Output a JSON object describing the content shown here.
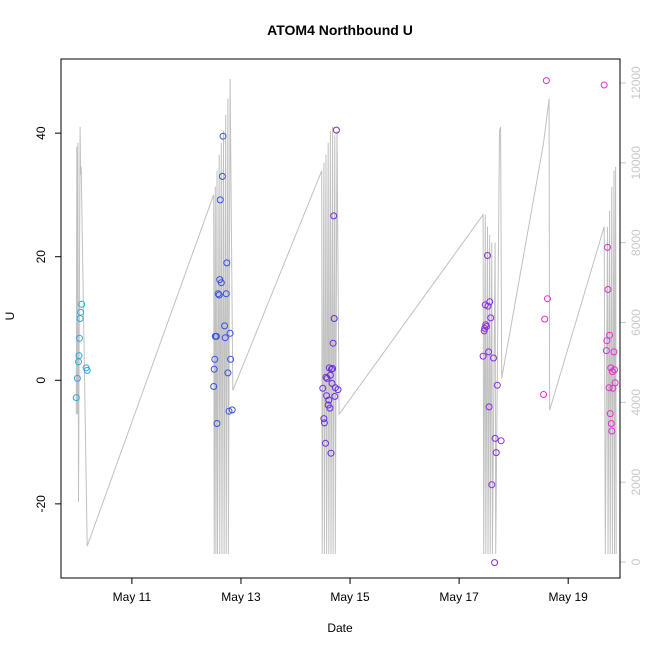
{
  "chart_data": {
    "type": "scatter",
    "title": "ATOM4 Northbound U",
    "xlabel": "Date",
    "ylabel": "U",
    "x_ticks": [
      {
        "label": "May 11",
        "day": 11
      },
      {
        "label": "May 13",
        "day": 13
      },
      {
        "label": "May 15",
        "day": 15
      },
      {
        "label": "May 17",
        "day": 17
      },
      {
        "label": "May 19",
        "day": 19
      }
    ],
    "xlim_days": [
      9.7,
      19.95
    ],
    "ylim": [
      -32,
      52
    ],
    "y_ticks": [
      -20,
      0,
      20,
      40
    ],
    "y2_ticks": [
      0,
      2000,
      4000,
      6000,
      8000,
      10000,
      12000
    ],
    "y2lim": [
      -400,
      12600
    ],
    "colors": {
      "early": "#2fa8e0",
      "mid": "#3550e0",
      "late": "#6a2be0",
      "end": "#e030d0",
      "trace": "#c0c0c0"
    },
    "points": [
      {
        "day": 9.98,
        "u": -2.8
      },
      {
        "day": 10.0,
        "u": 0.3
      },
      {
        "day": 10.02,
        "u": 3.0
      },
      {
        "day": 10.03,
        "u": 4.0
      },
      {
        "day": 10.04,
        "u": 6.8
      },
      {
        "day": 10.05,
        "u": 10.0
      },
      {
        "day": 10.06,
        "u": 11.0
      },
      {
        "day": 10.08,
        "u": 12.3
      },
      {
        "day": 10.16,
        "u": 2.0
      },
      {
        "day": 10.18,
        "u": 1.6
      },
      {
        "day": 12.5,
        "u": -1.0
      },
      {
        "day": 12.51,
        "u": 1.8
      },
      {
        "day": 12.52,
        "u": 3.4
      },
      {
        "day": 12.53,
        "u": 7.1
      },
      {
        "day": 12.55,
        "u": 7.1
      },
      {
        "day": 12.56,
        "u": -7.0
      },
      {
        "day": 12.58,
        "u": 14.0
      },
      {
        "day": 12.6,
        "u": 13.8
      },
      {
        "day": 12.61,
        "u": 16.3
      },
      {
        "day": 12.62,
        "u": 29.2
      },
      {
        "day": 12.64,
        "u": 15.8
      },
      {
        "day": 12.66,
        "u": 33.0
      },
      {
        "day": 12.67,
        "u": 39.5
      },
      {
        "day": 12.7,
        "u": 8.8
      },
      {
        "day": 12.71,
        "u": 6.9
      },
      {
        "day": 12.73,
        "u": 14.0
      },
      {
        "day": 12.74,
        "u": 19.0
      },
      {
        "day": 12.76,
        "u": 1.2
      },
      {
        "day": 12.78,
        "u": -5.0
      },
      {
        "day": 12.8,
        "u": 7.6
      },
      {
        "day": 12.81,
        "u": 3.4
      },
      {
        "day": 12.84,
        "u": -4.8
      },
      {
        "day": 14.5,
        "u": -1.3
      },
      {
        "day": 14.52,
        "u": -6.2
      },
      {
        "day": 14.53,
        "u": -6.9
      },
      {
        "day": 14.55,
        "u": -10.2
      },
      {
        "day": 14.56,
        "u": 0.5
      },
      {
        "day": 14.57,
        "u": -2.5
      },
      {
        "day": 14.58,
        "u": 0.3
      },
      {
        "day": 14.6,
        "u": -4.0
      },
      {
        "day": 14.61,
        "u": -3.2
      },
      {
        "day": 14.62,
        "u": 2.0
      },
      {
        "day": 14.63,
        "u": -4.5
      },
      {
        "day": 14.64,
        "u": 0.8
      },
      {
        "day": 14.65,
        "u": -11.8
      },
      {
        "day": 14.66,
        "u": 1.8
      },
      {
        "day": 14.67,
        "u": -0.5
      },
      {
        "day": 14.68,
        "u": 1.9
      },
      {
        "day": 14.69,
        "u": 6.0
      },
      {
        "day": 14.7,
        "u": 26.6
      },
      {
        "day": 14.71,
        "u": 10.0
      },
      {
        "day": 14.72,
        "u": -2.6
      },
      {
        "day": 14.73,
        "u": -1.2
      },
      {
        "day": 14.75,
        "u": 40.5
      },
      {
        "day": 14.78,
        "u": -1.5
      },
      {
        "day": 17.44,
        "u": 3.9
      },
      {
        "day": 17.46,
        "u": 8.0
      },
      {
        "day": 17.47,
        "u": 8.4
      },
      {
        "day": 17.48,
        "u": 12.2
      },
      {
        "day": 17.49,
        "u": 9.0
      },
      {
        "day": 17.5,
        "u": 8.7
      },
      {
        "day": 17.52,
        "u": 20.2
      },
      {
        "day": 17.53,
        "u": 12.0
      },
      {
        "day": 17.54,
        "u": 4.6
      },
      {
        "day": 17.55,
        "u": -4.3
      },
      {
        "day": 17.56,
        "u": 12.7
      },
      {
        "day": 17.58,
        "u": 10.1
      },
      {
        "day": 17.6,
        "u": -16.9
      },
      {
        "day": 17.63,
        "u": 3.6
      },
      {
        "day": 17.65,
        "u": -29.5
      },
      {
        "day": 17.66,
        "u": -9.4
      },
      {
        "day": 17.68,
        "u": -11.7
      },
      {
        "day": 17.7,
        "u": -0.8
      },
      {
        "day": 17.77,
        "u": -9.8
      },
      {
        "day": 18.55,
        "u": -2.3
      },
      {
        "day": 18.57,
        "u": 9.9
      },
      {
        "day": 18.6,
        "u": 48.5
      },
      {
        "day": 18.62,
        "u": 13.2
      },
      {
        "day": 19.66,
        "u": 47.8
      },
      {
        "day": 19.7,
        "u": 4.8
      },
      {
        "day": 19.71,
        "u": 6.4
      },
      {
        "day": 19.72,
        "u": 21.5
      },
      {
        "day": 19.73,
        "u": 14.7
      },
      {
        "day": 19.75,
        "u": -1.2
      },
      {
        "day": 19.76,
        "u": 7.3
      },
      {
        "day": 19.77,
        "u": -5.4
      },
      {
        "day": 19.78,
        "u": 2.0
      },
      {
        "day": 19.79,
        "u": -7.0
      },
      {
        "day": 19.8,
        "u": -8.2
      },
      {
        "day": 19.81,
        "u": 1.4
      },
      {
        "day": 19.82,
        "u": -1.3
      },
      {
        "day": 19.84,
        "u": 4.6
      },
      {
        "day": 19.85,
        "u": 1.7
      },
      {
        "day": 19.86,
        "u": -0.4
      }
    ],
    "trace": [
      [
        9.98,
        3700
      ],
      [
        9.99,
        10400
      ],
      [
        10.0,
        3700
      ],
      [
        10.01,
        10500
      ],
      [
        10.02,
        1500
      ],
      [
        10.05,
        10900
      ],
      [
        10.06,
        9700
      ],
      [
        10.07,
        9900
      ],
      [
        10.18,
        400
      ],
      [
        12.5,
        9200
      ],
      [
        12.51,
        200
      ],
      [
        12.53,
        9400
      ],
      [
        12.54,
        200
      ],
      [
        12.56,
        9800
      ],
      [
        12.57,
        200
      ],
      [
        12.6,
        10200
      ],
      [
        12.61,
        200
      ],
      [
        12.64,
        10500
      ],
      [
        12.65,
        200
      ],
      [
        12.68,
        10800
      ],
      [
        12.69,
        200
      ],
      [
        12.72,
        11200
      ],
      [
        12.73,
        200
      ],
      [
        12.76,
        11600
      ],
      [
        12.77,
        200
      ],
      [
        12.8,
        12100
      ],
      [
        12.85,
        4300
      ],
      [
        14.48,
        9800
      ],
      [
        14.49,
        200
      ],
      [
        14.52,
        10000
      ],
      [
        14.53,
        200
      ],
      [
        14.56,
        10200
      ],
      [
        14.57,
        200
      ],
      [
        14.6,
        10500
      ],
      [
        14.61,
        200
      ],
      [
        14.64,
        10800
      ],
      [
        14.65,
        200
      ],
      [
        14.68,
        10900
      ],
      [
        14.69,
        200
      ],
      [
        14.72,
        10700
      ],
      [
        14.73,
        200
      ],
      [
        14.76,
        10800
      ],
      [
        14.8,
        3700
      ],
      [
        17.44,
        8700
      ],
      [
        17.45,
        200
      ],
      [
        17.48,
        8700
      ],
      [
        17.49,
        200
      ],
      [
        17.52,
        8400
      ],
      [
        17.53,
        200
      ],
      [
        17.56,
        8200
      ],
      [
        17.57,
        200
      ],
      [
        17.6,
        8000
      ],
      [
        17.61,
        200
      ],
      [
        17.66,
        8000
      ],
      [
        17.67,
        200
      ],
      [
        17.74,
        10800
      ],
      [
        17.76,
        10900
      ],
      [
        17.78,
        4600
      ],
      [
        18.55,
        10500
      ],
      [
        18.65,
        11600
      ],
      [
        18.66,
        3800
      ],
      [
        19.66,
        8400
      ],
      [
        19.68,
        200
      ],
      [
        19.72,
        8400
      ],
      [
        19.73,
        200
      ],
      [
        19.76,
        8800
      ],
      [
        19.77,
        200
      ],
      [
        19.8,
        9400
      ],
      [
        19.81,
        200
      ],
      [
        19.84,
        9800
      ],
      [
        19.85,
        200
      ],
      [
        19.87,
        9900
      ],
      [
        19.88,
        200
      ]
    ]
  }
}
